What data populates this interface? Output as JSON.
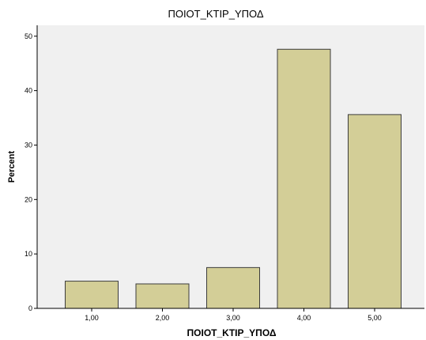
{
  "chart_data": {
    "type": "bar",
    "title": "ΠΟΙΟΤ_ΚΤΙΡ_ΥΠΟΔ",
    "xlabel": "ΠΟΙΟΤ_ΚΤΙΡ_ΥΠΟΔ",
    "ylabel": "Percent",
    "categories": [
      "1,00",
      "2,00",
      "3,00",
      "4,00",
      "5,00"
    ],
    "values": [
      5.0,
      4.5,
      7.5,
      47.6,
      35.6
    ],
    "ylim": [
      0,
      52
    ],
    "yticks": [
      0,
      10,
      20,
      30,
      40,
      50
    ],
    "grid": false,
    "legend": "none",
    "bar_color": "#d3ce97",
    "bar_edge_color": "#3c3c3c",
    "plot_background": "#f0f0f0",
    "axis_color": "#000000"
  }
}
